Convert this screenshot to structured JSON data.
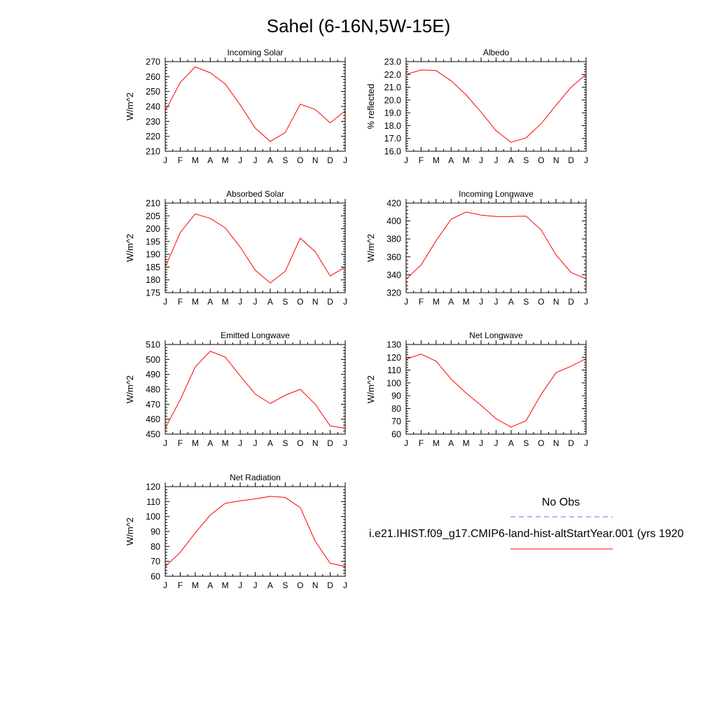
{
  "figure": {
    "title": "Sahel (6-16N,5W-15E)"
  },
  "legend": {
    "obs_label": "No Obs",
    "obs_color": "#6e6ef0",
    "model_label": "i.e21.IHIST.f09_g17.CMIP6-land-hist-altStartYear.001 (yrs 1920",
    "model_color": "#ff0000"
  },
  "chart_data": [
    {
      "type": "line",
      "title": "Incoming Solar",
      "ylabel": "W/m^2",
      "categories": [
        "J",
        "F",
        "M",
        "A",
        "M",
        "J",
        "J",
        "A",
        "S",
        "O",
        "N",
        "D",
        "J"
      ],
      "ylim": [
        210,
        270
      ],
      "yticks": [
        "210",
        "220",
        "230",
        "240",
        "250",
        "260",
        "270"
      ],
      "series": [
        {
          "color": "#ff0000",
          "values": [
            237,
            256,
            266.5,
            262.5,
            255,
            241,
            225.5,
            216.5,
            222.5,
            241.5,
            238,
            229,
            237
          ]
        }
      ]
    },
    {
      "type": "line",
      "title": "Albedo",
      "ylabel": "% reflected",
      "categories": [
        "J",
        "F",
        "M",
        "A",
        "M",
        "J",
        "J",
        "A",
        "S",
        "O",
        "N",
        "D",
        "J"
      ],
      "ylim": [
        16,
        23
      ],
      "yticks": [
        "16.0",
        "17.0",
        "18.0",
        "19.0",
        "20.0",
        "21.0",
        "22.0",
        "23.0"
      ],
      "series": [
        {
          "color": "#ff0000",
          "values": [
            22.0,
            22.35,
            22.3,
            21.5,
            20.4,
            19.05,
            17.6,
            16.7,
            17.05,
            18.15,
            19.6,
            21.0,
            22.0
          ]
        }
      ]
    },
    {
      "type": "line",
      "title": "Absorbed Solar",
      "ylabel": "W/m^2",
      "categories": [
        "J",
        "F",
        "M",
        "A",
        "M",
        "J",
        "J",
        "A",
        "S",
        "O",
        "N",
        "D",
        "J"
      ],
      "ylim": [
        175,
        210
      ],
      "yticks": [
        "175",
        "180",
        "185",
        "190",
        "195",
        "200",
        "205",
        "210"
      ],
      "series": [
        {
          "color": "#ff0000",
          "values": [
            185,
            198.5,
            205.8,
            204,
            200.3,
            192.8,
            183.8,
            178.8,
            183.3,
            196.3,
            191,
            181.5,
            185
          ]
        }
      ]
    },
    {
      "type": "line",
      "title": "Incoming Longwave",
      "ylabel": "W/m^2",
      "categories": [
        "J",
        "F",
        "M",
        "A",
        "M",
        "J",
        "J",
        "A",
        "S",
        "O",
        "N",
        "D",
        "J"
      ],
      "ylim": [
        320,
        420
      ],
      "yticks": [
        "320",
        "340",
        "360",
        "380",
        "400",
        "420"
      ],
      "series": [
        {
          "color": "#ff0000",
          "values": [
            335,
            351,
            378,
            402,
            410,
            406.5,
            405,
            405,
            405.5,
            390,
            362,
            342.5,
            335.5
          ]
        }
      ]
    },
    {
      "type": "line",
      "title": "Emitted Longwave",
      "ylabel": "W/m^2",
      "categories": [
        "J",
        "F",
        "M",
        "A",
        "M",
        "J",
        "J",
        "A",
        "S",
        "O",
        "N",
        "D",
        "J"
      ],
      "ylim": [
        450,
        510
      ],
      "yticks": [
        "450",
        "460",
        "470",
        "480",
        "490",
        "500",
        "510"
      ],
      "series": [
        {
          "color": "#ff0000",
          "values": [
            454,
            473,
            495,
            505.5,
            501.5,
            489,
            476.8,
            470.5,
            476,
            480,
            470,
            455.5,
            454
          ]
        }
      ]
    },
    {
      "type": "line",
      "title": "Net Longwave",
      "ylabel": "W/m^2",
      "categories": [
        "J",
        "F",
        "M",
        "A",
        "M",
        "J",
        "J",
        "A",
        "S",
        "O",
        "N",
        "D",
        "J"
      ],
      "ylim": [
        60,
        130
      ],
      "yticks": [
        "60",
        "70",
        "80",
        "90",
        "100",
        "110",
        "120",
        "130"
      ],
      "series": [
        {
          "color": "#ff0000",
          "values": [
            118.5,
            122.5,
            117,
            103,
            92,
            82.5,
            72,
            65.5,
            70.5,
            91,
            108,
            113,
            119
          ]
        }
      ]
    },
    {
      "type": "line",
      "title": "Net Radiation",
      "ylabel": "W/m^2",
      "categories": [
        "J",
        "F",
        "M",
        "A",
        "M",
        "J",
        "J",
        "A",
        "S",
        "O",
        "N",
        "D",
        "J"
      ],
      "ylim": [
        60,
        120
      ],
      "yticks": [
        "60",
        "70",
        "80",
        "90",
        "100",
        "110",
        "120"
      ],
      "series": [
        {
          "color": "#ff0000",
          "values": [
            66.5,
            76,
            89,
            101,
            108.8,
            110.5,
            111.8,
            113.5,
            112.8,
            106,
            83.5,
            68.7,
            66.5
          ]
        }
      ]
    }
  ]
}
